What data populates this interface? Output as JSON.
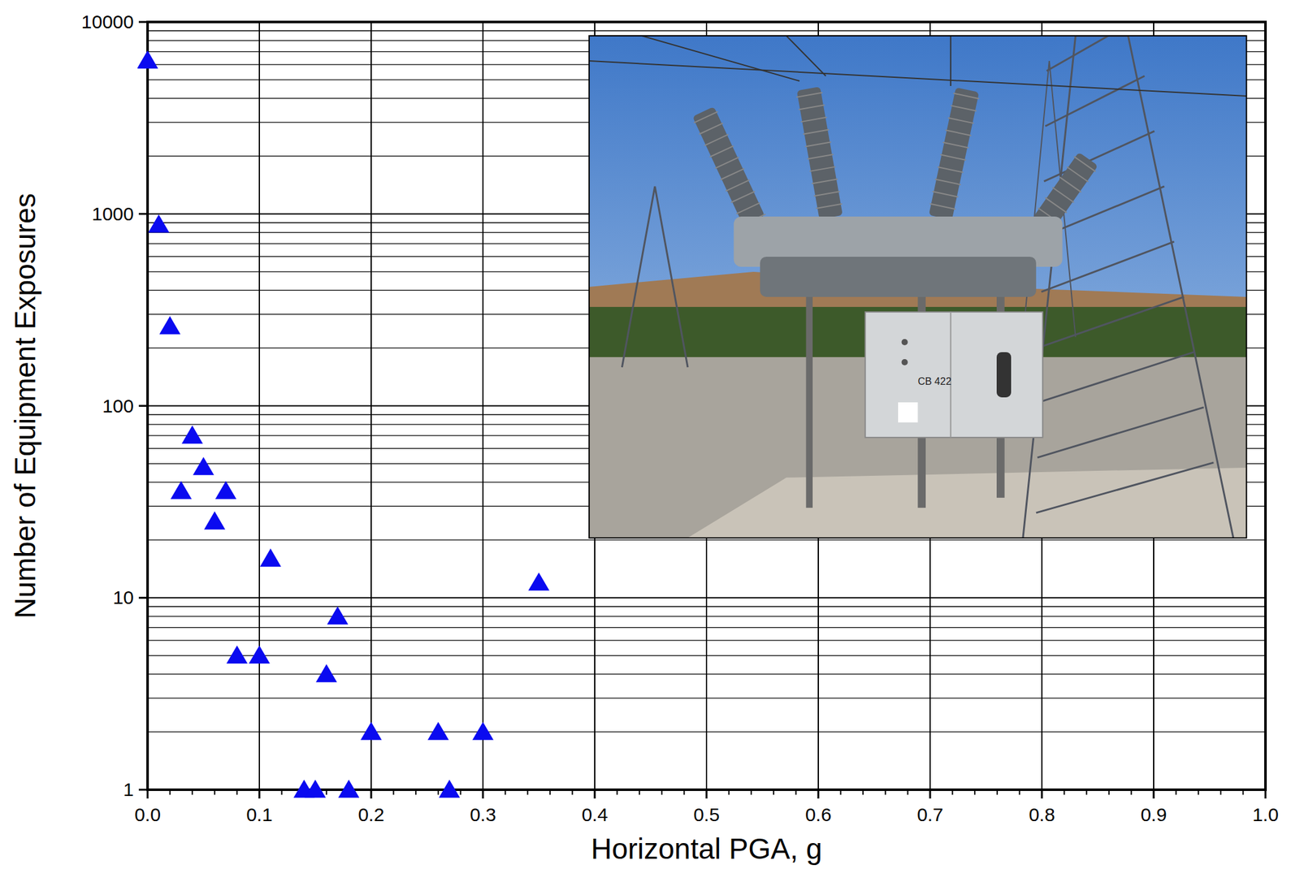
{
  "chart_data": {
    "type": "scatter",
    "x_label": "Horizontal PGA, g",
    "y_label": "Number of Equipment Exposures",
    "annotations": [
      "CB 422"
    ],
    "x": [
      0.0,
      0.01,
      0.02,
      0.03,
      0.04,
      0.05,
      0.06,
      0.07,
      0.08,
      0.1,
      0.11,
      0.14,
      0.15,
      0.16,
      0.17,
      0.18,
      0.2,
      0.26,
      0.27,
      0.3,
      0.35
    ],
    "values": [
      6300,
      880,
      260,
      36,
      70,
      48,
      25,
      36,
      5,
      5,
      16,
      1,
      1,
      4,
      8,
      1,
      2,
      2,
      1,
      2,
      12
    ],
    "color": "#0a0af0",
    "marker": "triangle",
    "xlim": [
      0,
      1
    ],
    "ylim": [
      1,
      10000
    ],
    "xticks": [
      {
        "value": 0,
        "label": "0.0"
      },
      0.1,
      0.2,
      0.3,
      0.4,
      0.5,
      0.6,
      0.7,
      0.8,
      0.9,
      {
        "value": 1,
        "label": "1.0"
      }
    ],
    "yticks": [
      1,
      10,
      100,
      1000,
      10000
    ],
    "log": "y",
    "grid": true
  }
}
